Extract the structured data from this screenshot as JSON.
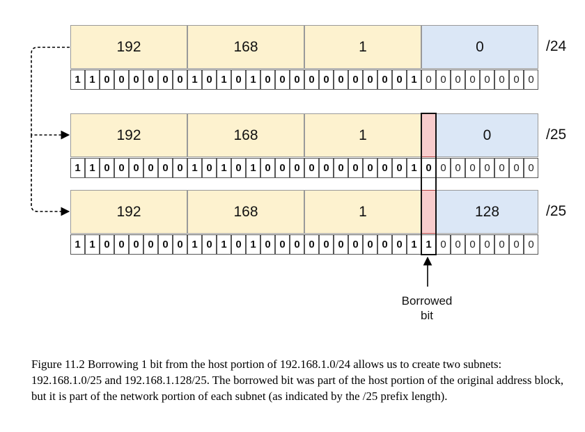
{
  "rows": [
    {
      "id": "row-24",
      "octets": [
        "192",
        "168",
        "1",
        "0"
      ],
      "bits": "11000000101010000000000100000000",
      "prefix": "/24",
      "network_bits": 24
    },
    {
      "id": "row-25a",
      "octets": [
        "192",
        "168",
        "1",
        "0"
      ],
      "bits": "11000000101010000000000100000000",
      "prefix": "/25",
      "network_bits": 25
    },
    {
      "id": "row-25b",
      "octets": [
        "192",
        "168",
        "1",
        "128"
      ],
      "bits": "11000000101010000000000110000000",
      "prefix": "/25",
      "network_bits": 25
    }
  ],
  "borrowed_label": [
    "Borrowed",
    "bit"
  ],
  "caption": "Figure 11.2 Borrowing 1 bit from the host portion of 192.168.1.0/24 allows us to create two subnets: 192.168.1.0/25 and 192.168.1.128/25. The borrowed bit was part of the host portion of the original address block, but it is part of the network portion of each subnet (as indicated by the /25 prefix length).",
  "colors": {
    "network_fill": "#fdf2cf",
    "host_fill": "#dbe7f6",
    "borrowed_fill": "#f8cccc",
    "border": "#999999"
  }
}
